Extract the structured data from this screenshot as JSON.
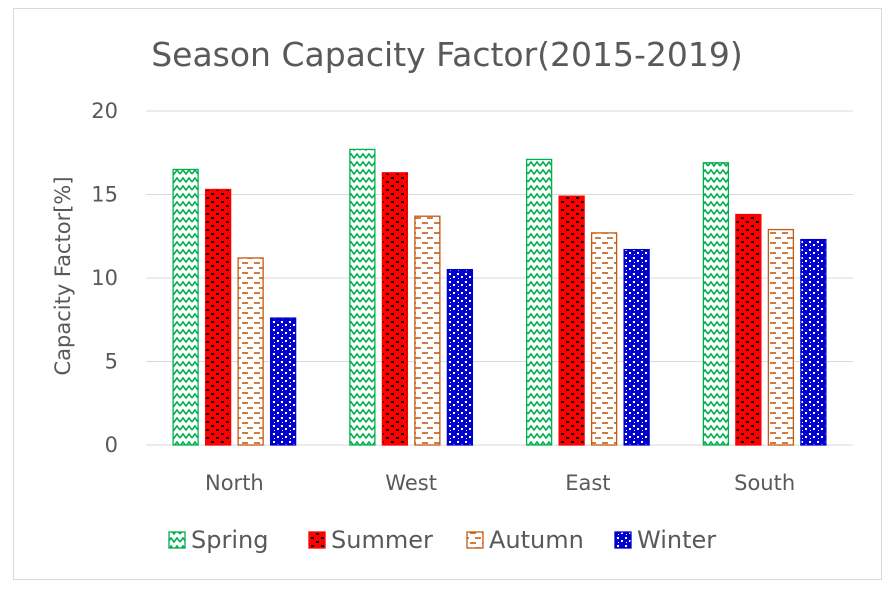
{
  "chart_data": {
    "type": "bar",
    "title": "Season Capacity Factor(2015-2019)",
    "xlabel": "",
    "ylabel": "Capacity Factor[%]",
    "ylim": [
      0,
      20
    ],
    "yticks": [
      0,
      5,
      10,
      15,
      20
    ],
    "grid": true,
    "legend_position": "bottom",
    "categories": [
      "North",
      "West",
      "East",
      "South"
    ],
    "series": [
      {
        "name": "Spring",
        "values": [
          16.5,
          17.7,
          17.1,
          16.9
        ],
        "color": "#00b050",
        "pattern": "zigzag"
      },
      {
        "name": "Summer",
        "values": [
          15.3,
          16.3,
          14.9,
          13.8
        ],
        "color": "#ff0000",
        "pattern": "bricks"
      },
      {
        "name": "Autumn",
        "values": [
          11.2,
          13.7,
          12.7,
          12.9
        ],
        "color": "#c55a11",
        "pattern": "dashes"
      },
      {
        "name": "Winter",
        "values": [
          7.6,
          10.5,
          11.7,
          12.3
        ],
        "color": "#0000cc",
        "pattern": "confetti"
      }
    ]
  }
}
